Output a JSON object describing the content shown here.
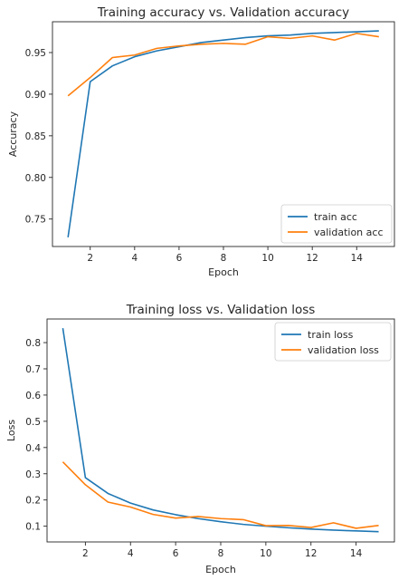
{
  "colors": {
    "train": "#1f77b4",
    "validation": "#ff7f0e"
  },
  "chart_data": [
    {
      "type": "line",
      "title": "Training accuracy vs. Validation accuracy",
      "xlabel": "Epoch",
      "ylabel": "Accuracy",
      "xlim": [
        0.3,
        15.7
      ],
      "ylim": [
        0.717,
        0.987
      ],
      "xticks": [
        2,
        4,
        6,
        8,
        10,
        12,
        14
      ],
      "xtick_labels": [
        "2",
        "4",
        "6",
        "8",
        "10",
        "12",
        "14"
      ],
      "yticks": [
        0.75,
        0.8,
        0.85,
        0.9,
        0.95
      ],
      "ytick_labels": [
        "0.75",
        "0.80",
        "0.85",
        "0.90",
        "0.95"
      ],
      "legend_position": "lower-right",
      "grid": false,
      "x": [
        1,
        2,
        3,
        4,
        5,
        6,
        7,
        8,
        9,
        10,
        11,
        12,
        13,
        14,
        15
      ],
      "series": [
        {
          "name": "train acc",
          "color": "#1f77b4",
          "values": [
            0.728,
            0.915,
            0.934,
            0.945,
            0.952,
            0.957,
            0.962,
            0.965,
            0.968,
            0.97,
            0.971,
            0.973,
            0.974,
            0.975,
            0.976
          ]
        },
        {
          "name": "validation acc",
          "color": "#ff7f0e",
          "values": [
            0.898,
            0.92,
            0.944,
            0.947,
            0.955,
            0.958,
            0.96,
            0.961,
            0.96,
            0.969,
            0.967,
            0.97,
            0.965,
            0.973,
            0.969
          ]
        }
      ]
    },
    {
      "type": "line",
      "title": "Training loss vs. Validation loss",
      "xlabel": "Epoch",
      "ylabel": "Loss",
      "xlim": [
        0.3,
        15.7
      ],
      "ylim": [
        0.04,
        0.89
      ],
      "xticks": [
        2,
        4,
        6,
        8,
        10,
        12,
        14
      ],
      "xtick_labels": [
        "2",
        "4",
        "6",
        "8",
        "10",
        "12",
        "14"
      ],
      "yticks": [
        0.1,
        0.2,
        0.3,
        0.4,
        0.5,
        0.6,
        0.7,
        0.8
      ],
      "ytick_labels": [
        "0.1",
        "0.2",
        "0.3",
        "0.4",
        "0.5",
        "0.6",
        "0.7",
        "0.8"
      ],
      "legend_position": "upper-right",
      "grid": false,
      "x": [
        1,
        2,
        3,
        4,
        5,
        6,
        7,
        8,
        9,
        10,
        11,
        12,
        13,
        14,
        15
      ],
      "series": [
        {
          "name": "train loss",
          "color": "#1f77b4",
          "values": [
            0.855,
            0.285,
            0.225,
            0.188,
            0.162,
            0.144,
            0.129,
            0.117,
            0.107,
            0.1,
            0.094,
            0.089,
            0.085,
            0.082,
            0.079
          ]
        },
        {
          "name": "validation loss",
          "color": "#ff7f0e",
          "values": [
            0.345,
            0.258,
            0.192,
            0.173,
            0.145,
            0.131,
            0.137,
            0.129,
            0.125,
            0.102,
            0.103,
            0.095,
            0.113,
            0.092,
            0.103
          ]
        }
      ]
    }
  ]
}
